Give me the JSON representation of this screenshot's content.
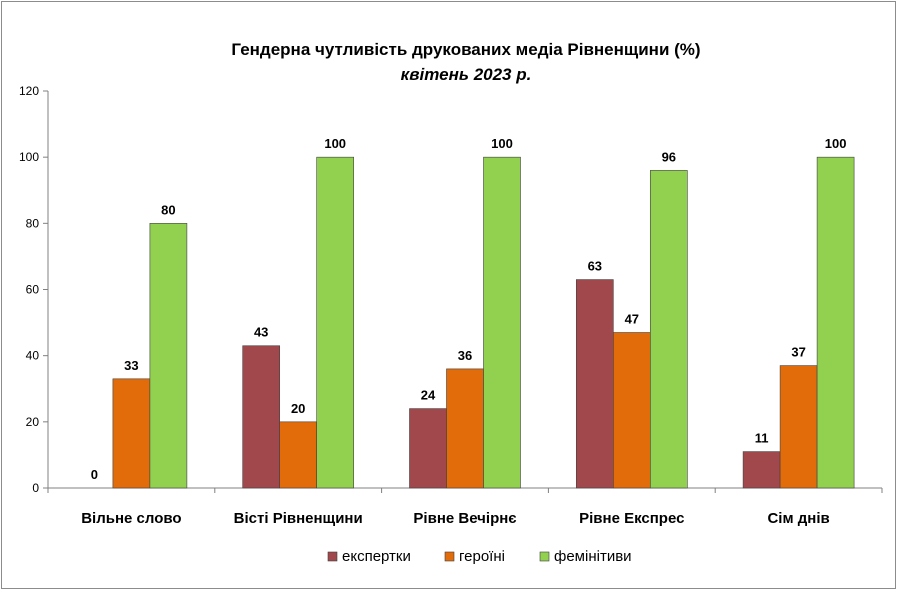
{
  "chart_data": {
    "type": "bar",
    "title": "Гендерна чутливість друкованих медіа Рівненщини (%)",
    "subtitle": "квітень 2023 р.",
    "categories": [
      "Вільне слово",
      "Вісті Рівненщини",
      "Рівне Вечірнє",
      "Рівне Експрес",
      "Сім днів"
    ],
    "series": [
      {
        "name": "експертки",
        "color": "#a0484b",
        "values": [
          0,
          43,
          24,
          63,
          11
        ]
      },
      {
        "name": "героїні",
        "color": "#e36c0a",
        "values": [
          33,
          20,
          36,
          47,
          37
        ]
      },
      {
        "name": "фемінітиви",
        "color": "#92d050",
        "values": [
          80,
          100,
          100,
          96,
          100
        ]
      }
    ],
    "ylim": [
      0,
      120
    ],
    "yticks": [
      0,
      20,
      40,
      60,
      80,
      100,
      120
    ],
    "ytick_labels": [
      "0",
      "20",
      "40",
      "60",
      "80",
      "100",
      "120"
    ],
    "grid": false,
    "legend_position": "bottom"
  }
}
